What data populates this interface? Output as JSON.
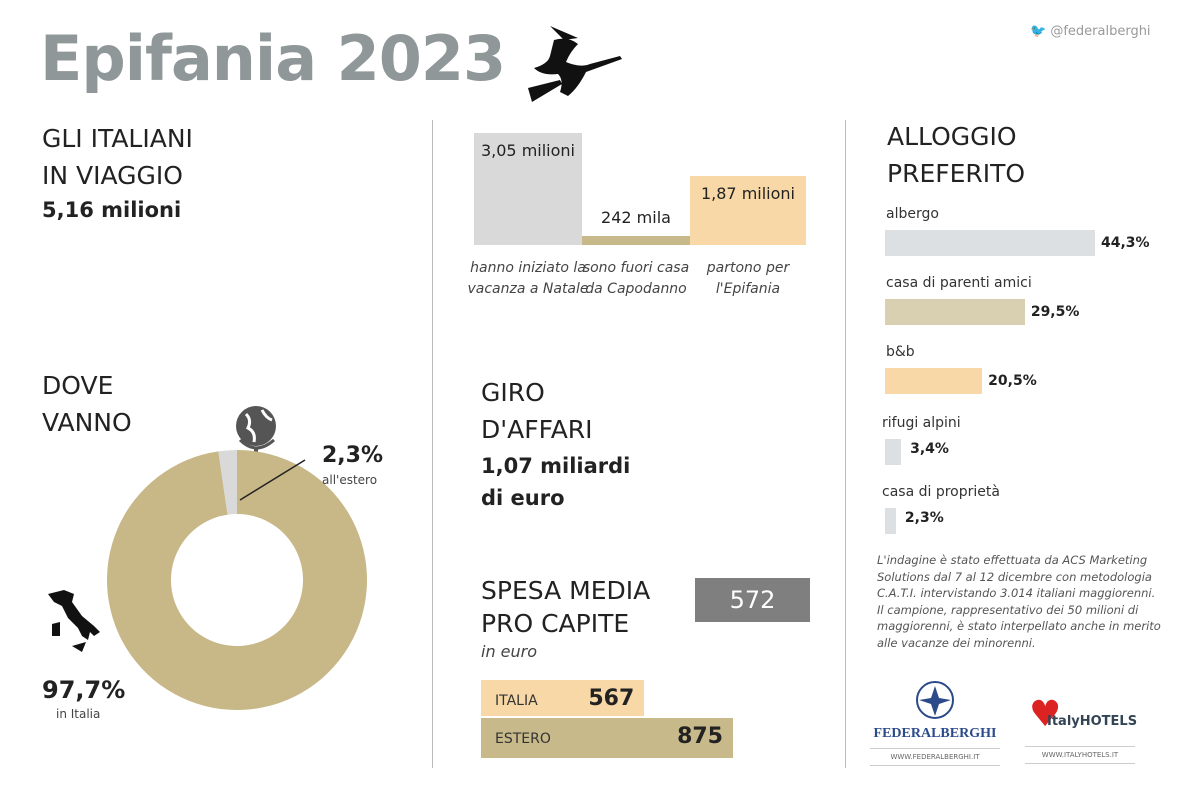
{
  "header": {
    "title": "Epifania 2023",
    "twitter": "@federalberghi"
  },
  "travel": {
    "heading_1": "GLI ITALIANI",
    "heading_2": "IN VIAGGIO",
    "value": "5,16 milioni"
  },
  "where": {
    "heading_1": "DOVE",
    "heading_2": "VANNO",
    "abroad_value": "2,3%",
    "abroad_label": "all'estero",
    "italy_value": "97,7%",
    "italy_label": "in Italia"
  },
  "business": {
    "heading_1": "GIRO",
    "heading_2": "D'AFFARI",
    "value_1": "1,07 miliardi",
    "value_2": "di euro"
  },
  "spend": {
    "heading_1": "SPESA MEDIA",
    "heading_2": "PRO CAPITE",
    "unit": "in euro",
    "value": "572",
    "italia_label": "ITALIA",
    "italia_value": "567",
    "estero_label": "ESTERO",
    "estero_value": "875"
  },
  "lodging": {
    "heading_1": "ALLOGGIO",
    "heading_2": "PREFERITO"
  },
  "note": {
    "line_1": "L'indagine è stato effettuata da ACS Marketing Solutions dal 7 al 12 dicembre con metodologia C.A.T.I. intervistando 3.014 italiani maggiorenni.",
    "line_2": "Il campione, rappresentativo dei 50 milioni di maggiorenni, è stato interpellato anche in merito alle vacanze dei minorenni."
  },
  "logos": {
    "federalberghi": "FEDERALBERGHI",
    "federalberghi_url": "WWW.FEDERALBERGHI.IT",
    "italyhotels": "ItalyHOTELS",
    "italyhotels_url": "WWW.ITALYHOTELS.IT"
  },
  "chart_data": [
    {
      "type": "pie",
      "title": "DOVE VANNO",
      "slices": [
        {
          "label": "in Italia",
          "value": 97.7,
          "color": "#c8b887"
        },
        {
          "label": "all'estero",
          "value": 2.3,
          "color": "#d9d9d9"
        }
      ]
    },
    {
      "type": "bar",
      "categories": [
        "hanno iniziato la vacanza a Natale",
        "sono fuori casa da Capodanno",
        "partono per l'Epifania"
      ],
      "values": [
        3050000,
        242000,
        1870000
      ],
      "data_labels": [
        "3,05 milioni",
        "242 mila",
        "1,87 milioni"
      ],
      "colors": [
        "#d9d9d9",
        "#c7b98a",
        "#f8d8a6"
      ]
    },
    {
      "type": "bar",
      "orientation": "horizontal",
      "title": "ALLOGGIO PREFERITO",
      "categories": [
        "albergo",
        "casa di parenti amici",
        "b&b",
        "rifugi alpini",
        "casa di proprietà"
      ],
      "values": [
        44.3,
        29.5,
        20.5,
        3.4,
        2.3
      ],
      "data_labels": [
        "44,3%",
        "29,5%",
        "20,5%",
        "3,4%",
        "2,3%"
      ],
      "colors": [
        "#dde0e3",
        "#d8d0b0",
        "#f8d8a6",
        "#dde0e3",
        "#dde0e3"
      ]
    },
    {
      "type": "bar",
      "orientation": "horizontal",
      "title": "SPESA MEDIA PRO CAPITE",
      "categories": [
        "ITALIA",
        "ESTERO"
      ],
      "values": [
        567,
        875
      ],
      "colors": [
        "#f8d8a6",
        "#c7b98a"
      ]
    }
  ]
}
